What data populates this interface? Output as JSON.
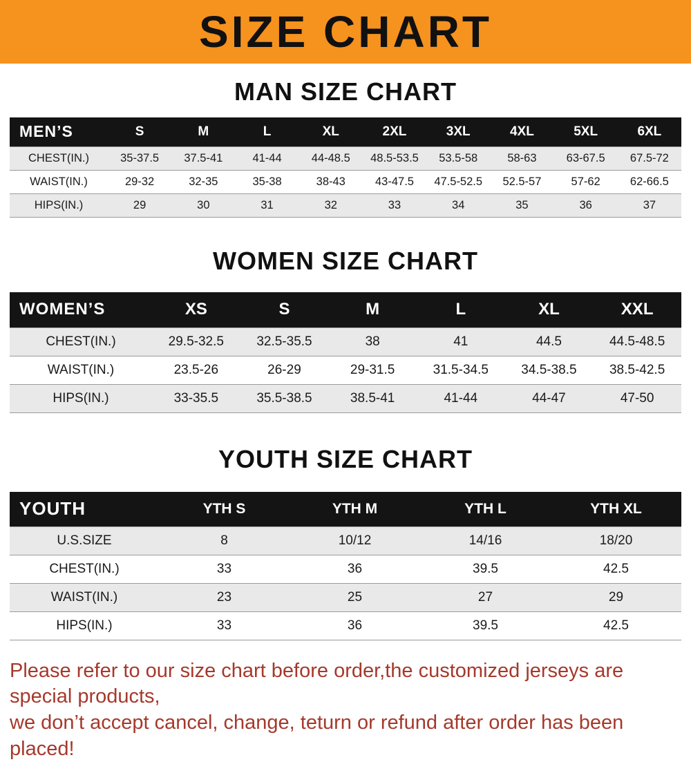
{
  "banner": {
    "title": "SIZE CHART",
    "bg_color": "#f6921e",
    "text_color": "#111111"
  },
  "sections": [
    {
      "heading": "MAN SIZE CHART",
      "table": {
        "header": [
          "MEN’S",
          "S",
          "M",
          "L",
          "XL",
          "2XL",
          "3XL",
          "4XL",
          "5XL",
          "6XL"
        ],
        "rows": [
          [
            "CHEST(IN.)",
            "35-37.5",
            "37.5-41",
            "41-44",
            "44-48.5",
            "48.5-53.5",
            "53.5-58",
            "58-63",
            "63-67.5",
            "67.5-72"
          ],
          [
            "WAIST(IN.)",
            "29-32",
            "32-35",
            "35-38",
            "38-43",
            "43-47.5",
            "47.5-52.5",
            "52.5-57",
            "57-62",
            "62-66.5"
          ],
          [
            "HIPS(IN.)",
            "29",
            "30",
            "31",
            "32",
            "33",
            "34",
            "35",
            "36",
            "37"
          ]
        ]
      }
    },
    {
      "heading": "WOMEN SIZE CHART",
      "table": {
        "header": [
          "WOMEN’S",
          "XS",
          "S",
          "M",
          "L",
          "XL",
          "XXL"
        ],
        "rows": [
          [
            "CHEST(IN.)",
            "29.5-32.5",
            "32.5-35.5",
            "38",
            "41",
            "44.5",
            "44.5-48.5"
          ],
          [
            "WAIST(IN.)",
            "23.5-26",
            "26-29",
            "29-31.5",
            "31.5-34.5",
            "34.5-38.5",
            "38.5-42.5"
          ],
          [
            "HIPS(IN.)",
            "33-35.5",
            "35.5-38.5",
            "38.5-41",
            "41-44",
            "44-47",
            "47-50"
          ]
        ]
      }
    },
    {
      "heading": "YOUTH SIZE CHART",
      "table": {
        "header": [
          "YOUTH",
          "YTH S",
          "YTH M",
          "YTH L",
          "YTH XL"
        ],
        "rows": [
          [
            "U.S.SIZE",
            "8",
            "10/12",
            "14/16",
            "18/20"
          ],
          [
            "CHEST(IN.)",
            "33",
            "36",
            "39.5",
            "42.5"
          ],
          [
            "WAIST(IN.)",
            "23",
            "25",
            "27",
            "29"
          ],
          [
            "HIPS(IN.)",
            "33",
            "36",
            "39.5",
            "42.5"
          ]
        ]
      }
    }
  ],
  "footer": {
    "line1": "Please refer to our size chart before order,the customized jerseys are special products,",
    "line2": "we don’t accept cancel, change, teturn or refund after order has been placed!",
    "text_color": "#a5392c"
  }
}
